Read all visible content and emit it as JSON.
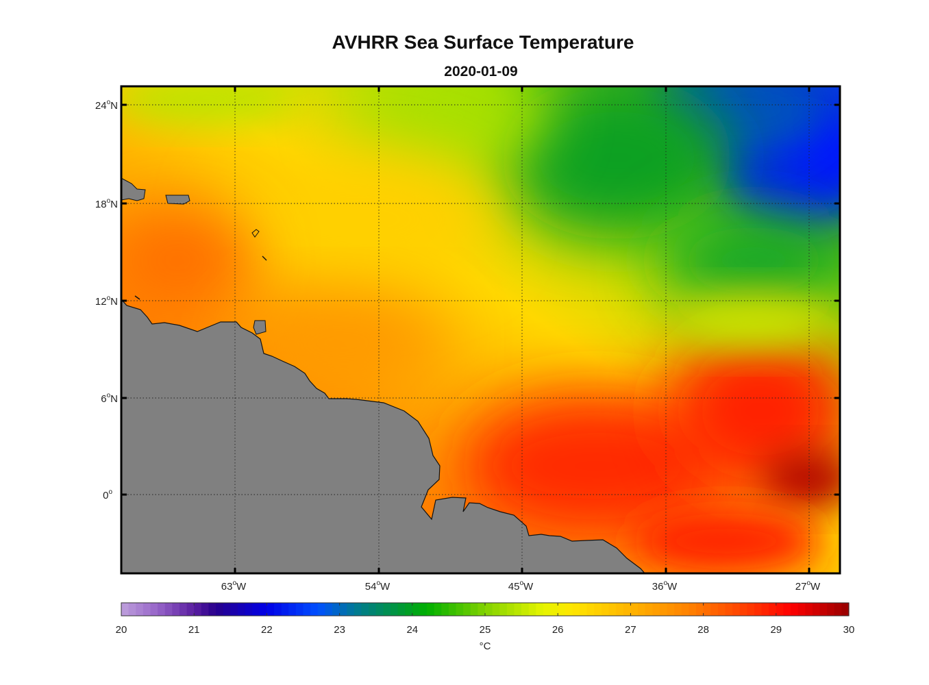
{
  "title": "AVHRR Sea Surface Temperature",
  "subtitle": "2020-01-09",
  "map": {
    "lat_labels": [
      {
        "value": 24,
        "deg": "24",
        "suffix": "N"
      },
      {
        "value": 18,
        "deg": "18",
        "suffix": "N"
      },
      {
        "value": 12,
        "deg": "12",
        "suffix": "N"
      },
      {
        "value": 6,
        "deg": "6",
        "suffix": "N"
      },
      {
        "value": 0,
        "deg": "0",
        "suffix": ""
      }
    ],
    "lon_labels": [
      {
        "value": -63,
        "deg": "63",
        "suffix": "W"
      },
      {
        "value": -54,
        "deg": "54",
        "suffix": "W"
      },
      {
        "value": -45,
        "deg": "45",
        "suffix": "W"
      },
      {
        "value": -36,
        "deg": "36",
        "suffix": "W"
      },
      {
        "value": -27,
        "deg": "27",
        "suffix": "W"
      }
    ],
    "land_color": "#808080",
    "grid": "dotted"
  },
  "colorbar": {
    "min": 20,
    "max": 30,
    "ticks": [
      "20",
      "21",
      "22",
      "23",
      "24",
      "25",
      "26",
      "27",
      "28",
      "29",
      "30"
    ],
    "unit": "°C"
  }
}
